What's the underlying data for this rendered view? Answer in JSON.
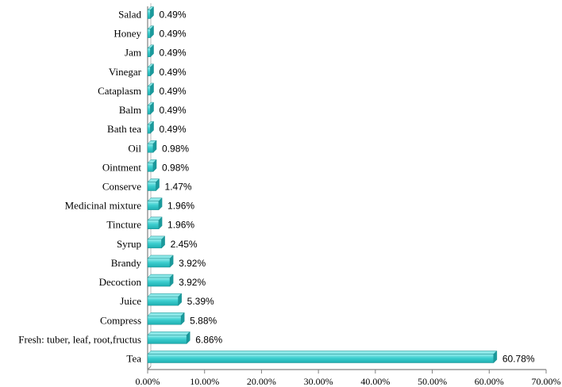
{
  "chart_data": {
    "type": "bar",
    "orientation": "horizontal",
    "categories": [
      "Tea",
      "Fresh: tuber, leaf, root,fructus",
      "Compress",
      "Juice",
      "Decoction",
      "Brandy",
      "Syrup",
      "Tincture",
      "Medicinal mixture",
      "Conserve",
      "Ointment",
      "Oil",
      "Bath tea",
      "Balm",
      "Cataplasm",
      "Vinegar",
      "Jam",
      "Honey",
      "Salad"
    ],
    "values": [
      60.78,
      6.86,
      5.88,
      5.39,
      3.92,
      3.92,
      2.45,
      1.96,
      1.96,
      1.47,
      0.98,
      0.98,
      0.49,
      0.49,
      0.49,
      0.49,
      0.49,
      0.49,
      0.49
    ],
    "value_labels": [
      "60.78%",
      "6.86%",
      "5.88%",
      "5.39%",
      "3.92%",
      "3.92%",
      "2.45%",
      "1.96%",
      "1.96%",
      "1.47%",
      "0.98%",
      "0.98%",
      "0.49%",
      "0.49%",
      "0.49%",
      "0.49%",
      "0.49%",
      "0.49%",
      "0.49%"
    ],
    "xticks": [
      "0.00%",
      "10.00%",
      "20.00%",
      "30.00%",
      "40.00%",
      "50.00%",
      "60.00%",
      "70.00%"
    ],
    "xlim": [
      0,
      70
    ],
    "title": "",
    "xlabel": "",
    "ylabel": "",
    "grid": false,
    "legend": "none",
    "colors": {
      "bar_front": "#3ecfd0",
      "bar_top": "#8de8e8",
      "bar_end": "#1a9a9c",
      "bar_stroke": "#1b8f91",
      "axis": "#808080"
    }
  }
}
